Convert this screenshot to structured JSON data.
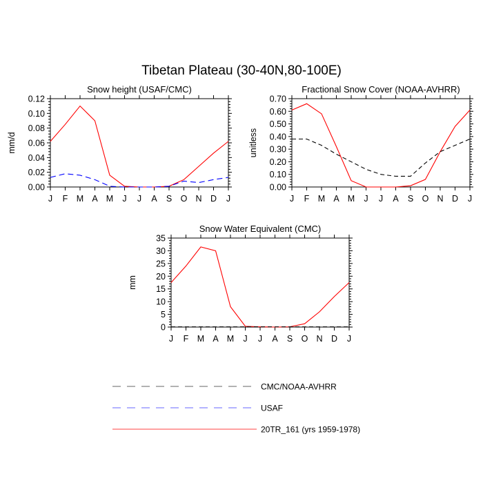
{
  "title": "Tibetan Plateau (30-40N,80-100E)",
  "chart_data": [
    {
      "type": "line",
      "title": "Snow height (USAF/CMC)",
      "xlabel": "",
      "ylabel": "mm/d",
      "categories": [
        "J",
        "F",
        "M",
        "A",
        "M",
        "J",
        "J",
        "A",
        "S",
        "O",
        "N",
        "D",
        "J"
      ],
      "ylim": [
        0,
        0.12
      ],
      "yticks": [
        0,
        0.02,
        0.04,
        0.06,
        0.08,
        0.1,
        0.12
      ],
      "ytick_labels": [
        "0.00",
        "0.02",
        "0.04",
        "0.06",
        "0.08",
        "0.10",
        "0.12"
      ],
      "series": [
        {
          "name": "20TR_161 (yrs 1959-1978)",
          "color": "#ff0000",
          "dash": "solid",
          "values": [
            0.062,
            0.085,
            0.11,
            0.09,
            0.016,
            0.001,
            0.0,
            0.0,
            0.001,
            0.01,
            0.028,
            0.046,
            0.062
          ]
        },
        {
          "name": "USAF",
          "color": "#0000ff",
          "dash": "dashed",
          "values": [
            0.013,
            0.018,
            0.016,
            0.01,
            0.001,
            0.0,
            0.0,
            0.0,
            0.001,
            0.008,
            0.006,
            0.01,
            0.013
          ]
        }
      ]
    },
    {
      "type": "line",
      "title": "Fractional Snow Cover (NOAA-AVHRR)",
      "xlabel": "",
      "ylabel": "unitless",
      "categories": [
        "J",
        "F",
        "M",
        "A",
        "M",
        "J",
        "J",
        "A",
        "S",
        "O",
        "N",
        "D",
        "J"
      ],
      "ylim": [
        0,
        0.7
      ],
      "yticks": [
        0,
        0.1,
        0.2,
        0.3,
        0.4,
        0.5,
        0.6,
        0.7
      ],
      "ytick_labels": [
        "0.00",
        "0.10",
        "0.20",
        "0.30",
        "0.40",
        "0.50",
        "0.60",
        "0.70"
      ],
      "series": [
        {
          "name": "20TR_161 (yrs 1959-1978)",
          "color": "#ff0000",
          "dash": "solid",
          "values": [
            0.61,
            0.66,
            0.58,
            0.32,
            0.05,
            0.0,
            0.0,
            0.0,
            0.01,
            0.06,
            0.28,
            0.48,
            0.61
          ]
        },
        {
          "name": "CMC/NOAA-AVHRR",
          "color": "#000000",
          "dash": "dashed",
          "values": [
            0.38,
            0.38,
            0.33,
            0.26,
            0.2,
            0.14,
            0.1,
            0.085,
            0.085,
            0.19,
            0.28,
            0.33,
            0.38
          ]
        }
      ]
    },
    {
      "type": "line",
      "title": "Snow Water Equivalent (CMC)",
      "xlabel": "",
      "ylabel": "mm",
      "categories": [
        "J",
        "F",
        "M",
        "A",
        "M",
        "J",
        "J",
        "A",
        "S",
        "O",
        "N",
        "D",
        "J"
      ],
      "ylim": [
        0,
        35
      ],
      "yticks": [
        0,
        5,
        10,
        15,
        20,
        25,
        30,
        35
      ],
      "ytick_labels": [
        "0",
        "5",
        "10",
        "15",
        "20",
        "25",
        "30",
        "35"
      ],
      "series": [
        {
          "name": "20TR_161 (yrs 1959-1978)",
          "color": "#ff0000",
          "dash": "solid",
          "values": [
            17.5,
            24.0,
            31.5,
            30.0,
            8.0,
            0.3,
            0.1,
            0.0,
            0.1,
            1.3,
            6.0,
            12.0,
            17.5
          ]
        },
        {
          "name": "CMC/NOAA-AVHRR",
          "color": "#000000",
          "dash": "dashed",
          "values": [
            0.1,
            0.1,
            0.1,
            0.1,
            0.1,
            0.1,
            0.1,
            0.1,
            0.1,
            0.1,
            0.1,
            0.1,
            0.1
          ]
        }
      ]
    }
  ],
  "legend": [
    {
      "label": "CMC/NOAA-AVHRR",
      "color": "#000000",
      "dash": "dashed"
    },
    {
      "label": "USAF",
      "color": "#0000ff",
      "dash": "dashed"
    },
    {
      "label": "20TR_161 (yrs 1959-1978)",
      "color": "#ff0000",
      "dash": "solid"
    }
  ]
}
